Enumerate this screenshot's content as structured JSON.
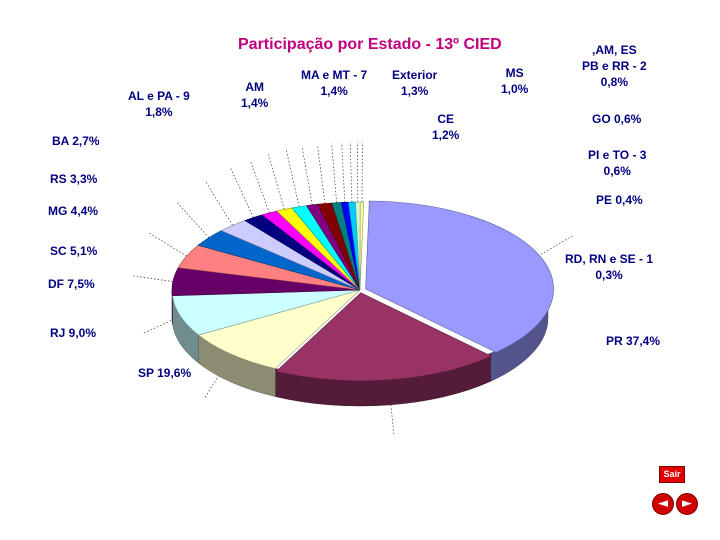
{
  "title": "Participação por Estado - 13º CIED",
  "buttons": {
    "sair": "Sair",
    "prev": "◄",
    "next": "►"
  },
  "chart_data": {
    "type": "pie",
    "title": "Participação por Estado - 13º CIED",
    "three_d": true,
    "slices": [
      {
        "label": "PR",
        "value": 37.4,
        "text": "PR 37,4%",
        "color": "#9999ff"
      },
      {
        "label": "SP",
        "value": 19.6,
        "text": "SP 19,6%",
        "color": "#993366"
      },
      {
        "label": "RJ",
        "value": 9.0,
        "text": "RJ 9,0%",
        "color": "#ffffcc"
      },
      {
        "label": "DF",
        "value": 7.5,
        "text": "DF 7,5%",
        "color": "#ccffff"
      },
      {
        "label": "SC",
        "value": 5.1,
        "text": "SC 5,1%",
        "color": "#660066"
      },
      {
        "label": "MG",
        "value": 4.4,
        "text": "MG 4,4%",
        "color": "#ff8080"
      },
      {
        "label": "RS",
        "value": 3.3,
        "text": "RS 3,3%",
        "color": "#0066cc"
      },
      {
        "label": "BA",
        "value": 2.7,
        "text": "BA 2,7%",
        "color": "#ccccff"
      },
      {
        "label": "AL e PA - 9",
        "value": 1.8,
        "text": "AL e PA - 9\n1,8%",
        "color": "#000080"
      },
      {
        "label": "AM",
        "value": 1.4,
        "text": "AM\n1,4%",
        "color": "#ff00ff"
      },
      {
        "label": "MA e MT - 7",
        "value": 1.4,
        "text": "MA e MT - 7\n1,4%",
        "color": "#ffff00"
      },
      {
        "label": "Exterior",
        "value": 1.3,
        "text": "Exterior\n1,3%",
        "color": "#00ffff"
      },
      {
        "label": "MS",
        "value": 1.0,
        "text": "MS\n1,0%",
        "color": "#800080"
      },
      {
        "label": "CE",
        "value": 1.2,
        "text": "CE\n1,2%",
        "color": "#800000"
      },
      {
        "label": ",AM, ES PB e RR - 2",
        "value": 0.8,
        "text": ",AM, ES\nPB e RR -  2\n0,8%",
        "color": "#008080"
      },
      {
        "label": "GO",
        "value": 0.6,
        "text": "GO 0,6%",
        "color": "#0000ff"
      },
      {
        "label": "PI e TO - 3",
        "value": 0.6,
        "text": "PI e TO - 3\n0,6%",
        "color": "#00ccff"
      },
      {
        "label": "PE",
        "value": 0.4,
        "text": "PE 0,4%",
        "color": "#ccffcc"
      },
      {
        "label": "RD, RN e SE - 1",
        "value": 0.3,
        "text": "RD, RN e SE - 1\n0,3%",
        "color": "#ffff99"
      }
    ]
  }
}
